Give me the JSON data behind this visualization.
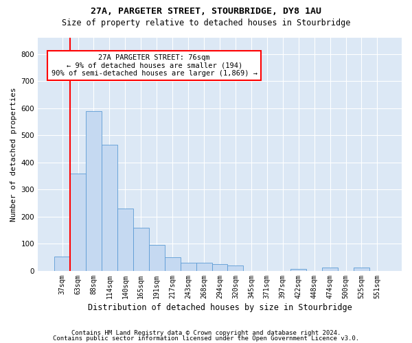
{
  "title1": "27A, PARGETER STREET, STOURBRIDGE, DY8 1AU",
  "title2": "Size of property relative to detached houses in Stourbridge",
  "xlabel": "Distribution of detached houses by size in Stourbridge",
  "ylabel": "Number of detached properties",
  "categories": [
    "37sqm",
    "63sqm",
    "88sqm",
    "114sqm",
    "140sqm",
    "165sqm",
    "191sqm",
    "217sqm",
    "243sqm",
    "268sqm",
    "294sqm",
    "320sqm",
    "345sqm",
    "371sqm",
    "397sqm",
    "422sqm",
    "448sqm",
    "474sqm",
    "500sqm",
    "525sqm",
    "551sqm"
  ],
  "values": [
    52,
    360,
    590,
    465,
    230,
    160,
    97,
    50,
    30,
    30,
    25,
    20,
    0,
    0,
    0,
    8,
    0,
    13,
    0,
    13,
    0
  ],
  "bar_color": "#c5d9f1",
  "bar_edge_color": "#5b9bd5",
  "annotation_text": "27A PARGETER STREET: 76sqm\n← 9% of detached houses are smaller (194)\n90% of semi-detached houses are larger (1,869) →",
  "vline_x_index": 1,
  "annotation_box_color": "white",
  "annotation_box_edge": "red",
  "footer1": "Contains HM Land Registry data © Crown copyright and database right 2024.",
  "footer2": "Contains public sector information licensed under the Open Government Licence v3.0.",
  "ylim": [
    0,
    860
  ],
  "yticks": [
    0,
    100,
    200,
    300,
    400,
    500,
    600,
    700,
    800
  ],
  "background_color": "#dce8f5",
  "title1_fontsize": 9.5,
  "title2_fontsize": 8.5,
  "tick_fontsize": 7,
  "ylabel_fontsize": 8,
  "xlabel_fontsize": 8.5
}
